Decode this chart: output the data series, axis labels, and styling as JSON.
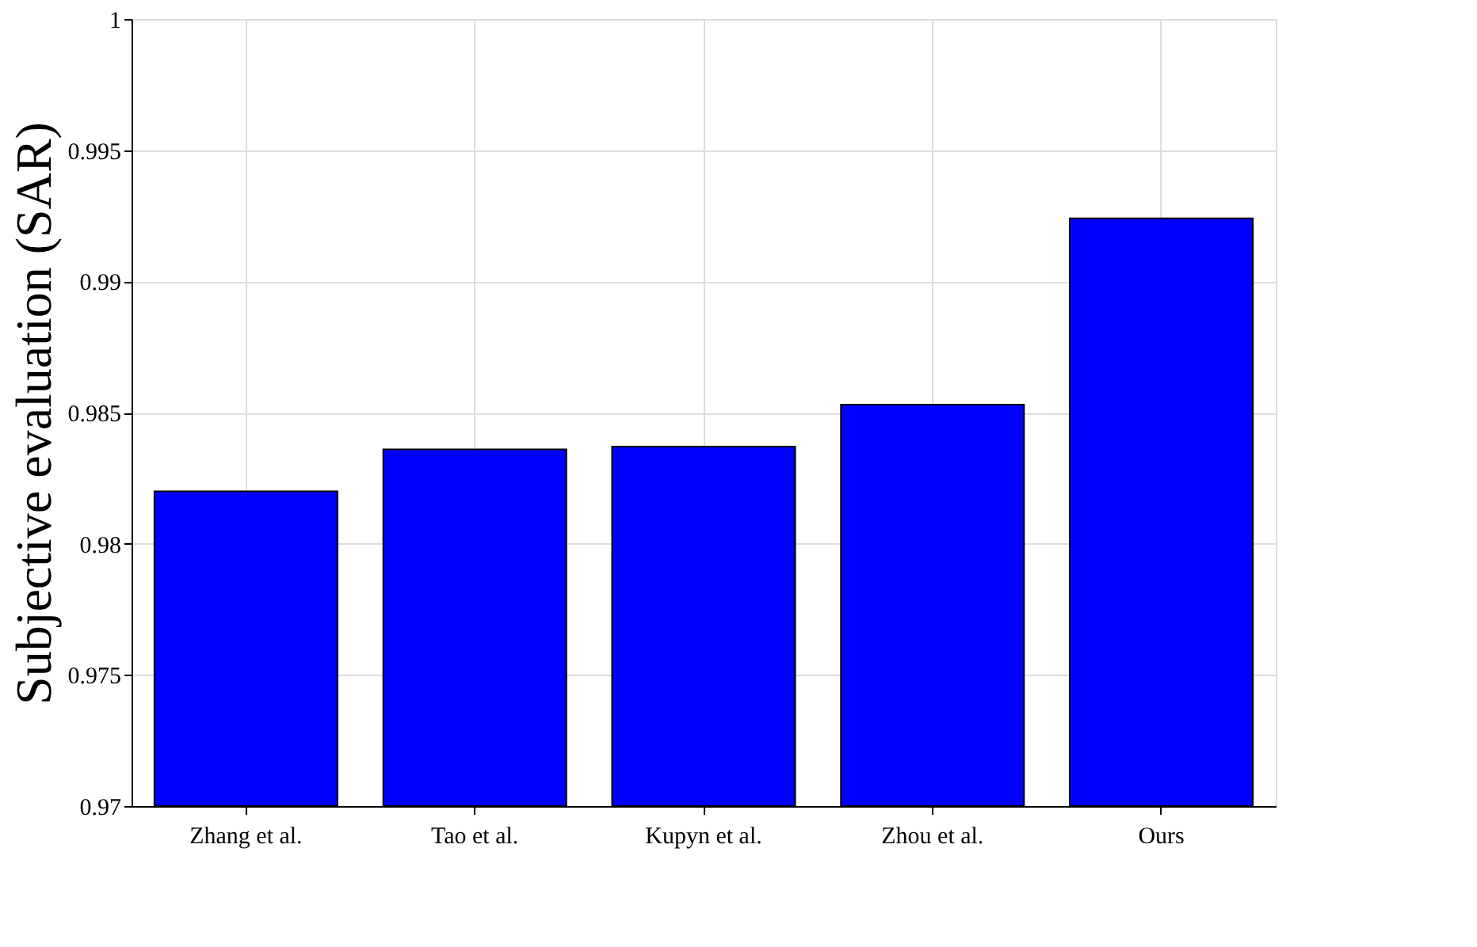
{
  "chart_data": {
    "type": "bar",
    "ylabel": "Subjective evaluation (SAR)",
    "categories": [
      "Zhang et al.",
      "Tao et al.",
      "Kupyn et al.",
      "Zhou et al.",
      "Ours"
    ],
    "values": [
      0.982,
      0.9836,
      0.9837,
      0.9853,
      0.9924
    ],
    "color": "#0000ff",
    "ylim": [
      0.97,
      1
    ],
    "yticks": [
      0.97,
      0.975,
      0.98,
      0.985,
      0.99,
      0.995,
      1
    ],
    "grid": true
  }
}
